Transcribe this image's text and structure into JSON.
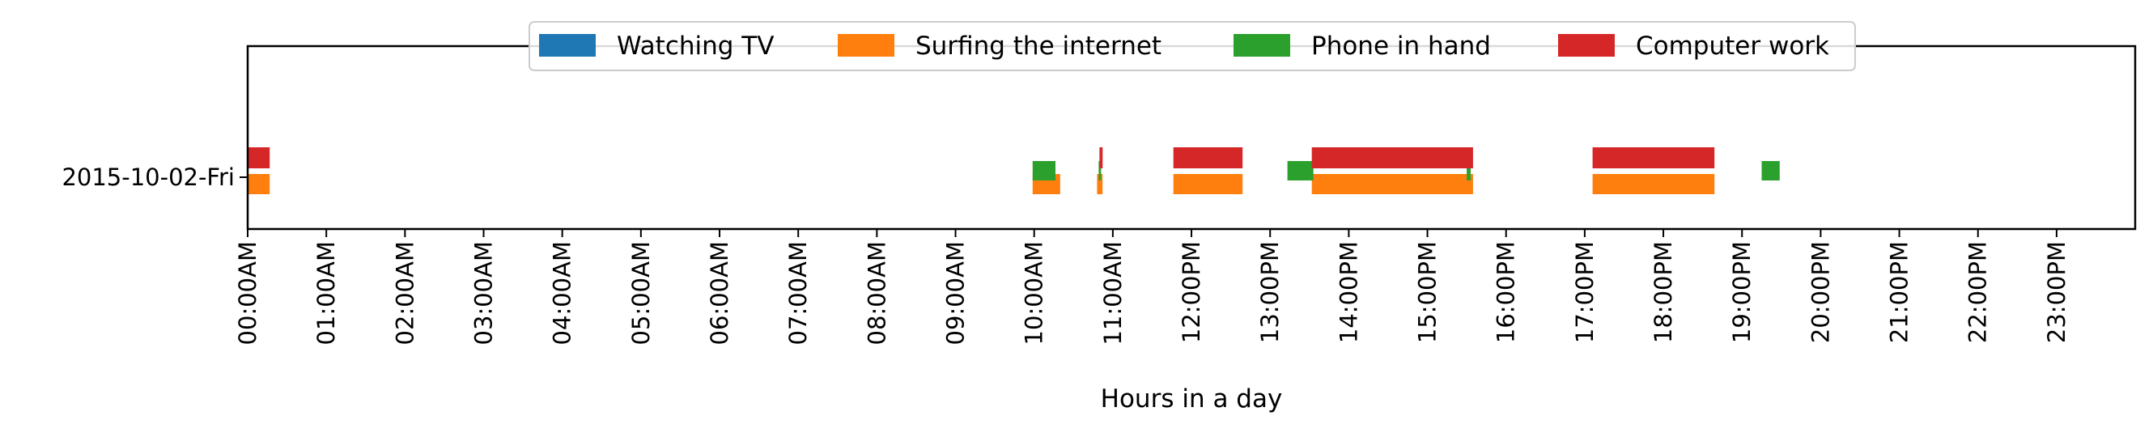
{
  "chart_data": {
    "type": "timeline",
    "xlabel": "Hours in a day",
    "xlim": [
      0,
      24
    ],
    "y_categories": [
      "2015-10-02-Fri"
    ],
    "x_ticks": [
      {
        "hour": 0,
        "label": "00:00AM"
      },
      {
        "hour": 1,
        "label": "01:00AM"
      },
      {
        "hour": 2,
        "label": "02:00AM"
      },
      {
        "hour": 3,
        "label": "03:00AM"
      },
      {
        "hour": 4,
        "label": "04:00AM"
      },
      {
        "hour": 5,
        "label": "05:00AM"
      },
      {
        "hour": 6,
        "label": "06:00AM"
      },
      {
        "hour": 7,
        "label": "07:00AM"
      },
      {
        "hour": 8,
        "label": "08:00AM"
      },
      {
        "hour": 9,
        "label": "09:00AM"
      },
      {
        "hour": 10,
        "label": "10:00AM"
      },
      {
        "hour": 11,
        "label": "11:00AM"
      },
      {
        "hour": 12,
        "label": "12:00PM"
      },
      {
        "hour": 13,
        "label": "13:00PM"
      },
      {
        "hour": 14,
        "label": "14:00PM"
      },
      {
        "hour": 15,
        "label": "15:00PM"
      },
      {
        "hour": 16,
        "label": "16:00PM"
      },
      {
        "hour": 17,
        "label": "17:00PM"
      },
      {
        "hour": 18,
        "label": "18:00PM"
      },
      {
        "hour": 19,
        "label": "19:00PM"
      },
      {
        "hour": 20,
        "label": "20:00PM"
      },
      {
        "hour": 21,
        "label": "21:00PM"
      },
      {
        "hour": 22,
        "label": "22:00PM"
      },
      {
        "hour": 23,
        "label": "23:00PM"
      }
    ],
    "legend_position": "top-center",
    "series": [
      {
        "name": "Watching TV",
        "color": "#1f77b4",
        "intervals": []
      },
      {
        "name": "Surfing the internet",
        "color": "#ff7f0e",
        "intervals": [
          [
            0.0,
            0.28
          ],
          [
            9.98,
            10.33
          ],
          [
            10.8,
            10.87
          ],
          [
            11.77,
            12.65
          ],
          [
            13.53,
            15.58
          ],
          [
            17.1,
            18.65
          ]
        ]
      },
      {
        "name": "Phone in hand",
        "color": "#2ca02c",
        "intervals": [
          [
            9.98,
            10.27
          ],
          [
            10.82,
            10.85
          ],
          [
            13.22,
            13.55
          ],
          [
            15.5,
            15.55
          ],
          [
            19.25,
            19.48
          ]
        ]
      },
      {
        "name": "Computer work",
        "color": "#d62728",
        "intervals": [
          [
            0.0,
            0.28
          ],
          [
            10.83,
            10.87
          ],
          [
            11.77,
            12.65
          ],
          [
            13.53,
            15.58
          ],
          [
            17.1,
            18.65
          ]
        ]
      }
    ]
  }
}
